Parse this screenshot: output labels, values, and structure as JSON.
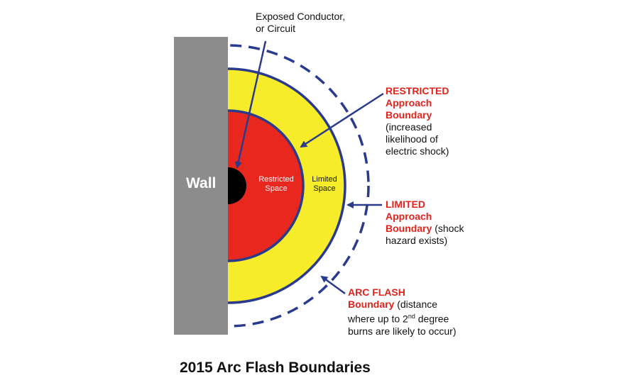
{
  "diagram": {
    "wall_label": "Wall",
    "conductor_label_line1": "Exposed Conductor,",
    "conductor_label_line2": "or Circuit",
    "restricted_space_line1": "Restricted",
    "restricted_space_line2": "Space",
    "limited_space_line1": "Limited",
    "limited_space_line2": "Space",
    "restricted_boundary": {
      "line1": "RESTRICTED",
      "line2": "Approach",
      "line3": "Boundary",
      "desc1": "(increased",
      "desc2": "likelihood of",
      "desc3": "electric shock)"
    },
    "limited_boundary": {
      "line1": "LIMITED",
      "line2": "Approach",
      "line3": "Boundary",
      "desc_inline": " (shock",
      "desc2": "hazard exists)"
    },
    "arc_flash_boundary": {
      "line1": "ARC FLASH",
      "line2": "Boundary",
      "desc_inline": " (distance",
      "desc2_pre": "where  up to 2",
      "desc2_sup": "nd",
      "desc2_post": " degree",
      "desc3": "burns are likely to occur)"
    },
    "title": "2015 Arc Flash Boundaries",
    "colors": {
      "wall": "#8c8c8c",
      "restricted_space": "#e8281e",
      "limited_space": "#f6ec2a",
      "boundary_lines": "#2a3a8c",
      "conductor": "#000000",
      "boundary_text": "#e2231a"
    }
  }
}
